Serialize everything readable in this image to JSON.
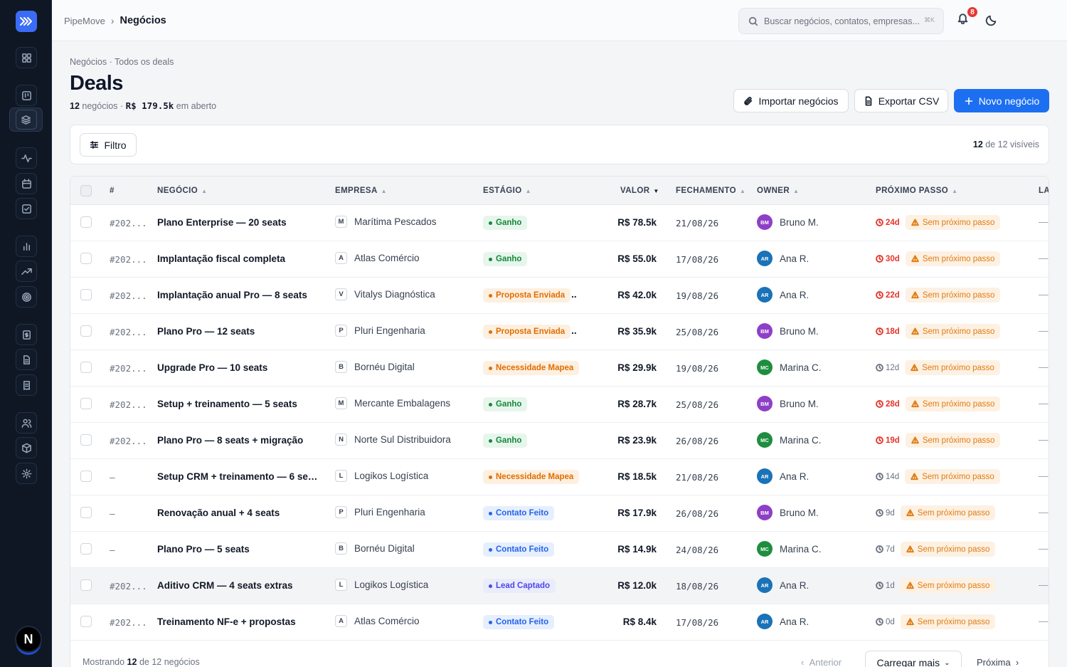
{
  "app": {
    "name": "PipeMove",
    "section": "Negócios"
  },
  "search": {
    "placeholder": "Buscar negócios, contatos, empresas...",
    "shortcut": "⌘K"
  },
  "notifications": {
    "count": "8"
  },
  "page": {
    "breadcrumb": "Negócios · Todos os deals",
    "title": "Deals",
    "summary_count": "12",
    "summary_count_label": "negócios ·",
    "summary_value": "R$ 179.5k",
    "summary_value_label": "em aberto"
  },
  "actions": {
    "import": "Importar negócios",
    "export": "Exportar CSV",
    "new": "Novo negócio"
  },
  "filter": {
    "label": "Filtro",
    "visible_count": "12",
    "visible_label": "de 12 visíveis"
  },
  "columns": {
    "id": "#",
    "deal": "NEGÓCIO",
    "company": "EMPRESA",
    "stage": "ESTÁGIO",
    "value": "VALOR",
    "close": "FECHAMENTO",
    "owner": "OWNER",
    "next": "PRÓXIMO PASSO",
    "last": "LA"
  },
  "colors": {
    "accent": "#1d6ff2",
    "sidebar": "#0f1724",
    "danger": "#e5342b",
    "warning": "#e07c12"
  },
  "rows": [
    {
      "id": "#202...",
      "deal": "Plano Enterprise — 20 seats",
      "company_initial": "M",
      "company": "Marítima Pescados",
      "stage": "Ganho",
      "stage_color": "green",
      "value": "R$ 78.5k",
      "close": "21/08/26",
      "owner_initials": "BM",
      "owner": "Bruno M.",
      "owner_color": "#8e3fc7",
      "days": "24d",
      "days_overdue": true,
      "next": "Sem próximo passo",
      "last": "—"
    },
    {
      "id": "#202...",
      "deal": "Implantação fiscal completa",
      "company_initial": "A",
      "company": "Atlas Comércio",
      "stage": "Ganho",
      "stage_color": "green",
      "value": "R$ 55.0k",
      "close": "17/08/26",
      "owner_initials": "AR",
      "owner": "Ana R.",
      "owner_color": "#1a72b8",
      "days": "30d",
      "days_overdue": true,
      "next": "Sem próximo passo",
      "last": "—"
    },
    {
      "id": "#202...",
      "deal": "Implantação anual Pro — 8 seats",
      "company_initial": "V",
      "company": "Vitalys Diagnóstica",
      "stage": "Proposta Enviada",
      "stage_color": "orange",
      "stage_trunc": true,
      "value": "R$ 42.0k",
      "close": "19/08/26",
      "owner_initials": "AR",
      "owner": "Ana R.",
      "owner_color": "#1a72b8",
      "days": "22d",
      "days_overdue": true,
      "next": "Sem próximo passo",
      "last": "—"
    },
    {
      "id": "#202...",
      "deal": "Plano Pro — 12 seats",
      "company_initial": "P",
      "company": "Pluri Engenharia",
      "stage": "Proposta Enviada",
      "stage_color": "orange",
      "stage_trunc": true,
      "value": "R$ 35.9k",
      "close": "25/08/26",
      "owner_initials": "BM",
      "owner": "Bruno M.",
      "owner_color": "#8e3fc7",
      "days": "18d",
      "days_overdue": true,
      "next": "Sem próximo passo",
      "last": "—"
    },
    {
      "id": "#202...",
      "deal": "Upgrade Pro — 10 seats",
      "company_initial": "B",
      "company": "Bornéu Digital",
      "stage": "Necessidade Mapea",
      "stage_color": "orange",
      "value": "R$ 29.9k",
      "close": "19/08/26",
      "owner_initials": "MC",
      "owner": "Marina C.",
      "owner_color": "#1e8e3e",
      "days": "12d",
      "days_overdue": false,
      "next": "Sem próximo passo",
      "last": "—"
    },
    {
      "id": "#202...",
      "deal": "Setup + treinamento — 5 seats",
      "company_initial": "M",
      "company": "Mercante Embalagens",
      "stage": "Ganho",
      "stage_color": "green",
      "value": "R$ 28.7k",
      "close": "25/08/26",
      "owner_initials": "BM",
      "owner": "Bruno M.",
      "owner_color": "#8e3fc7",
      "days": "28d",
      "days_overdue": true,
      "next": "Sem próximo passo",
      "last": "—"
    },
    {
      "id": "#202...",
      "deal": "Plano Pro — 8 seats + migração",
      "company_initial": "N",
      "company": "Norte Sul Distribuidora",
      "stage": "Ganho",
      "stage_color": "green",
      "value": "R$ 23.9k",
      "close": "26/08/26",
      "owner_initials": "MC",
      "owner": "Marina C.",
      "owner_color": "#1e8e3e",
      "days": "19d",
      "days_overdue": true,
      "next": "Sem próximo passo",
      "last": "—"
    },
    {
      "id": "–",
      "deal": "Setup CRM + treinamento — 6 sea...",
      "company_initial": "L",
      "company": "Logikos Logística",
      "stage": "Necessidade Mapea",
      "stage_color": "orange",
      "value": "R$ 18.5k",
      "close": "21/08/26",
      "owner_initials": "AR",
      "owner": "Ana R.",
      "owner_color": "#1a72b8",
      "days": "14d",
      "days_overdue": false,
      "next": "Sem próximo passo",
      "last": "—"
    },
    {
      "id": "–",
      "deal": "Renovação anual + 4 seats",
      "company_initial": "P",
      "company": "Pluri Engenharia",
      "stage": "Contato Feito",
      "stage_color": "blue",
      "value": "R$ 17.9k",
      "close": "26/08/26",
      "owner_initials": "BM",
      "owner": "Bruno M.",
      "owner_color": "#8e3fc7",
      "days": "9d",
      "days_overdue": false,
      "next": "Sem próximo passo",
      "last": "—"
    },
    {
      "id": "–",
      "deal": "Plano Pro — 5 seats",
      "company_initial": "B",
      "company": "Bornéu Digital",
      "stage": "Contato Feito",
      "stage_color": "blue",
      "value": "R$ 14.9k",
      "close": "24/08/26",
      "owner_initials": "MC",
      "owner": "Marina C.",
      "owner_color": "#1e8e3e",
      "days": "7d",
      "days_overdue": false,
      "next": "Sem próximo passo",
      "last": "—"
    },
    {
      "id": "#202...",
      "deal": "Aditivo CRM — 4 seats extras",
      "company_initial": "L",
      "company": "Logikos Logística",
      "stage": "Lead Captado",
      "stage_color": "indigo",
      "value": "R$ 12.0k",
      "close": "18/08/26",
      "owner_initials": "AR",
      "owner": "Ana R.",
      "owner_color": "#1a72b8",
      "days": "1d",
      "days_overdue": false,
      "next": "Sem próximo passo",
      "last": "—",
      "highlight": true
    },
    {
      "id": "#202...",
      "deal": "Treinamento NF-e + propostas",
      "company_initial": "A",
      "company": "Atlas Comércio",
      "stage": "Contato Feito",
      "stage_color": "blue",
      "value": "R$ 8.4k",
      "close": "17/08/26",
      "owner_initials": "AR",
      "owner": "Ana R.",
      "owner_color": "#1a72b8",
      "days": "0d",
      "days_overdue": false,
      "next": "Sem próximo passo",
      "last": "—"
    }
  ],
  "footer": {
    "prefix": "Mostrando",
    "count": "12",
    "suffix": "de 12 negócios",
    "prev": "Anterior",
    "load_more": "Carregar mais",
    "next": "Próxima"
  },
  "user": {
    "initial": "N"
  }
}
